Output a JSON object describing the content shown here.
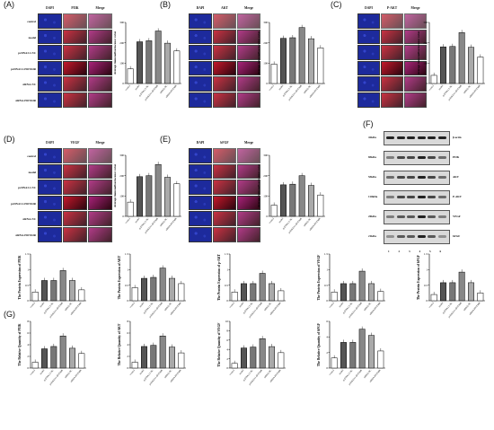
{
  "micro_panels": [
    {
      "letter": "(A)",
      "columns": [
        "DAPI",
        "PI3K",
        "Merge"
      ],
      "rows": [
        "control",
        "model",
        "pcDNA3.1-NC",
        "pcDNA3.1-HOTAIR",
        "siRNA-NC",
        "siRNA-HOTAIR"
      ],
      "bar": {
        "ylabel": "Average immunofluorescence value",
        "values": [
          72,
          205,
          210,
          258,
          198,
          160
        ],
        "ymax": 300,
        "yticks": [
          0,
          100,
          200,
          300
        ]
      }
    },
    {
      "letter": "(B)",
      "columns": [
        "DAPI",
        "AKT",
        "Merge"
      ],
      "rows": [],
      "bar": {
        "ylabel": "Average immunofluorescence value",
        "values": [
          95,
          222,
          225,
          275,
          220,
          175
        ],
        "ymax": 300,
        "yticks": [
          0,
          100,
          200,
          300
        ]
      }
    },
    {
      "letter": "(C)",
      "columns": [
        "DAPI",
        "P-AKT",
        "Merge"
      ],
      "rows": [],
      "bar": {
        "ylabel": "Average immunofluorescence value",
        "values": [
          40,
          180,
          182,
          250,
          178,
          130
        ],
        "ymax": 300,
        "yticks": [
          0,
          100,
          200,
          300
        ]
      }
    },
    {
      "letter": "(D)",
      "columns": [
        "DAPI",
        "VEGF",
        "Merge"
      ],
      "rows": [
        "control",
        "model",
        "pcDNA3.1-NC",
        "pcDNA3.1-HOTAIR",
        "siRNA-NC",
        "siRNA-HOTAIR"
      ],
      "bar": {
        "ylabel": "Average immunofluorescence value",
        "values": [
          70,
          195,
          200,
          255,
          192,
          160
        ],
        "ymax": 300,
        "yticks": [
          0,
          100,
          200,
          300
        ]
      }
    },
    {
      "letter": "(E)",
      "columns": [
        "DAPI",
        "bFGF",
        "Merge"
      ],
      "rows": [],
      "bar": {
        "ylabel": "Average immunofluorescence value",
        "values": [
          55,
          155,
          158,
          200,
          152,
          105
        ],
        "ymax": 300,
        "yticks": [
          0,
          100,
          200,
          300
        ]
      }
    }
  ],
  "blot": {
    "letter": "(F)",
    "sizes": [
      "42kDa",
      "85kDa",
      "55kDa",
      "110kDa",
      "20kDa",
      "21kDa"
    ],
    "proteins": [
      "β-actin",
      "PI3K",
      "AKT",
      "P-AKT",
      "VEGF",
      "bFGF"
    ],
    "lanes": [
      "1",
      "2",
      "3",
      "4",
      "5",
      "6"
    ]
  },
  "group_labels": [
    "control",
    "model",
    "pcDNA3.1-NC",
    "pcDNA3.1-HOTAIR",
    "siRNA-NC",
    "siRNA-HOTAIR"
  ],
  "chart_data": [
    {
      "type": "bar",
      "ylabel": "The Protein Expression of PI3K",
      "categories": [
        "control",
        "model",
        "pcDNA3.1-NC",
        "pcDNA3.1-HOTAIR",
        "siRNA-NC",
        "siRNA-HOTAIR"
      ],
      "values": [
        0.28,
        0.65,
        0.65,
        0.97,
        0.65,
        0.35
      ],
      "ylim": [
        0,
        1.5
      ]
    },
    {
      "type": "bar",
      "ylabel": "The Protein Expression of AKT",
      "categories": [
        "control",
        "model",
        "pcDNA3.1-NC",
        "pcDNA3.1-HOTAIR",
        "siRNA-NC",
        "siRNA-HOTAIR"
      ],
      "values": [
        0.42,
        0.72,
        0.75,
        1.05,
        0.72,
        0.55
      ],
      "ylim": [
        0,
        1.5
      ]
    },
    {
      "type": "bar",
      "ylabel": "The Protein Expression of p-AKT",
      "categories": [
        "control",
        "model",
        "pcDNA3.1-NC",
        "pcDNA3.1-HOTAIR",
        "siRNA-NC",
        "siRNA-HOTAIR"
      ],
      "values": [
        0.28,
        0.55,
        0.55,
        0.88,
        0.55,
        0.32
      ],
      "ylim": [
        0,
        1.5
      ]
    },
    {
      "type": "bar",
      "ylabel": "The Protein Expression of VEGF",
      "categories": [
        "control",
        "model",
        "pcDNA3.1-NC",
        "pcDNA3.1-HOTAIR",
        "siRNA-NC",
        "siRNA-HOTAIR"
      ],
      "values": [
        0.28,
        0.55,
        0.55,
        0.95,
        0.55,
        0.3
      ],
      "ylim": [
        0,
        1.5
      ]
    },
    {
      "type": "bar",
      "ylabel": "The Protein Expression of bFGF",
      "categories": [
        "control",
        "model",
        "pcDNA3.1-NC",
        "pcDNA3.1-HOTAIR",
        "siRNA-NC",
        "siRNA-HOTAIR"
      ],
      "values": [
        0.2,
        0.58,
        0.58,
        0.92,
        0.58,
        0.25
      ],
      "ylim": [
        0,
        1.5
      ]
    },
    {
      "type": "bar",
      "ylabel": "The Relative Quantity of PI3K",
      "categories": [
        "control",
        "model",
        "pcDNA3.1-NC",
        "pcDNA3.1-HOTAIR",
        "siRNA-NC",
        "siRNA-HOTAIR"
      ],
      "values": [
        1.0,
        3.3,
        3.7,
        5.5,
        3.4,
        2.5
      ],
      "ylim": [
        0,
        8
      ]
    },
    {
      "type": "bar",
      "ylabel": "The Relative Quantity of AKT",
      "categories": [
        "control",
        "model",
        "pcDNA3.1-NC",
        "pcDNA3.1-HOTAIR",
        "siRNA-NC",
        "siRNA-HOTAIR"
      ],
      "values": [
        1.0,
        3.7,
        3.9,
        5.5,
        3.6,
        2.6
      ],
      "ylim": [
        0,
        8
      ]
    },
    {
      "type": "bar",
      "ylabel": "The Relative Quantity of VEGF",
      "categories": [
        "control",
        "model",
        "pcDNA3.1-NC",
        "pcDNA3.1-HOTAIR",
        "siRNA-NC",
        "siRNA-HOTAIR"
      ],
      "values": [
        1.0,
        4.3,
        4.5,
        6.3,
        4.6,
        3.3
      ],
      "ylim": [
        0,
        10
      ]
    },
    {
      "type": "bar",
      "ylabel": "The Relative Quantity of bFGF",
      "categories": [
        "control",
        "model",
        "pcDNA3.1-NC",
        "pcDNA3.1-HOTAIR",
        "siRNA-NC",
        "siRNA-HOTAIR"
      ],
      "values": [
        1.3,
        3.3,
        3.3,
        5.0,
        4.2,
        2.2
      ],
      "ylim": [
        0,
        6
      ]
    }
  ],
  "g_letter": "(G)",
  "colors": {
    "bar_colors": [
      "#ffffff",
      "#555555",
      "#777777",
      "#888888",
      "#aaaaaa",
      "#ffffff"
    ],
    "dapi": "#1d2a9c",
    "red": "#c4182a",
    "merge": "#a8237a"
  }
}
